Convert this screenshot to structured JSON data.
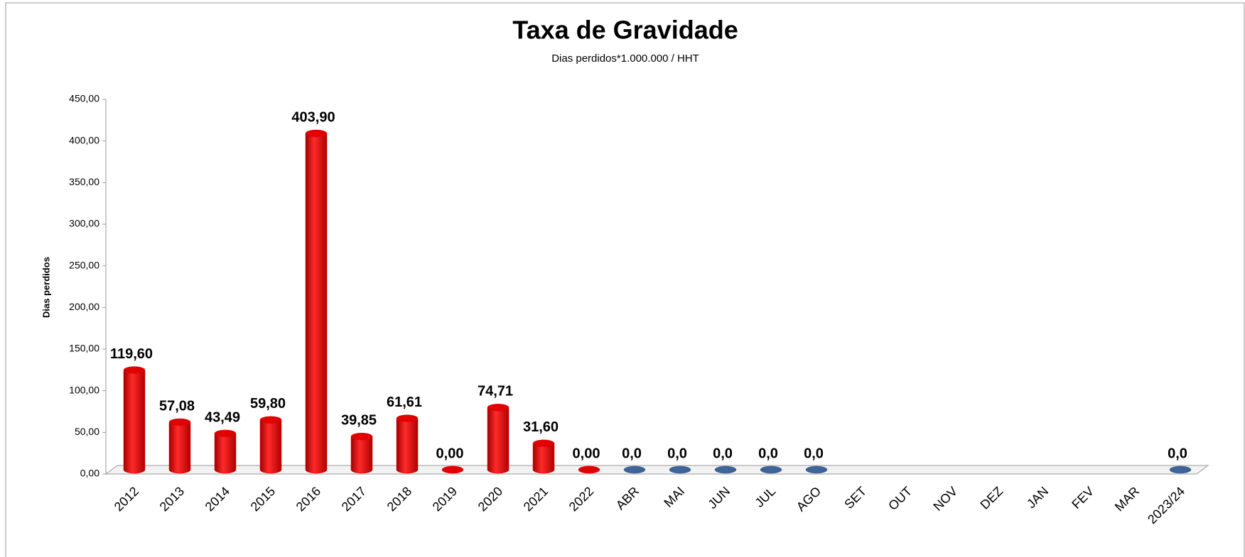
{
  "chart_data": {
    "type": "bar",
    "title": "Taxa de Gravidade",
    "subtitle": "Dias perdidos*1.000.000 / HHT",
    "y_label": "Dias perdidos",
    "categories": [
      "2012",
      "2013",
      "2014",
      "2015",
      "2016",
      "2017",
      "2018",
      "2019",
      "2020",
      "2021",
      "2022",
      "ABR",
      "MAI",
      "JUN",
      "JUL",
      "AGO",
      "SET",
      "OUT",
      "NOV",
      "DEZ",
      "JAN",
      "FEV",
      "MAR",
      "2023/24"
    ],
    "values": [
      119.6,
      57.08,
      43.49,
      59.8,
      403.9,
      39.85,
      61.61,
      0,
      74.71,
      31.6,
      0,
      0,
      0,
      0,
      0,
      0,
      null,
      null,
      null,
      null,
      null,
      null,
      null,
      0
    ],
    "value_labels": [
      "119,60",
      "57,08",
      "43,49",
      "59,80",
      "403,90",
      "39,85",
      "61,61",
      "0,00",
      "74,71",
      "31,60",
      "0,00",
      "0,0",
      "0,0",
      "0,0",
      "0,0",
      "0,0",
      null,
      null,
      null,
      null,
      null,
      null,
      null,
      "0,0"
    ],
    "colors": [
      "#e00000",
      "#e00000",
      "#e00000",
      "#e00000",
      "#e00000",
      "#e00000",
      "#e00000",
      "#e00000",
      "#e00000",
      "#e00000",
      "#e00000",
      "#3d6496",
      "#3d6496",
      "#3d6496",
      "#3d6496",
      "#3d6496",
      "#3d6496",
      "#3d6496",
      "#3d6496",
      "#3d6496",
      "#3d6496",
      "#3d6496",
      "#3d6496",
      "#3d6496"
    ],
    "ylim": [
      0,
      450
    ],
    "yticks": [
      {
        "value": 0,
        "label": "0,00"
      },
      {
        "value": 50,
        "label": "50,00"
      },
      {
        "value": 100,
        "label": "100,00"
      },
      {
        "value": 150,
        "label": "150,00"
      },
      {
        "value": 200,
        "label": "200,00"
      },
      {
        "value": 250,
        "label": "250,00"
      },
      {
        "value": 300,
        "label": "300,00"
      },
      {
        "value": 350,
        "label": "350,00"
      },
      {
        "value": 400,
        "label": "400,00"
      },
      {
        "value": 450,
        "label": "450,00"
      }
    ],
    "grid": false
  }
}
